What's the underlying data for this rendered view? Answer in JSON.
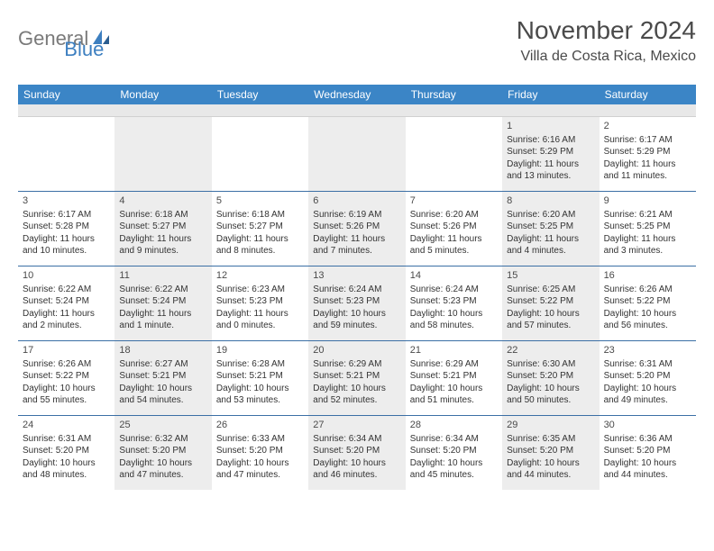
{
  "logo": {
    "text1": "General",
    "text2": "Blue"
  },
  "title": "November 2024",
  "location": "Villa de Costa Rica, Mexico",
  "weekdays": [
    "Sunday",
    "Monday",
    "Tuesday",
    "Wednesday",
    "Thursday",
    "Friday",
    "Saturday"
  ],
  "colors": {
    "header_bg": "#3b85c6",
    "divider": "#3b6fa5",
    "shade": "#ededed",
    "logo_gray": "#7a7a7a",
    "logo_blue": "#3d7fc0"
  },
  "weeks": [
    [
      {
        "num": "",
        "shaded": false,
        "lines": []
      },
      {
        "num": "",
        "shaded": true,
        "lines": []
      },
      {
        "num": "",
        "shaded": false,
        "lines": []
      },
      {
        "num": "",
        "shaded": true,
        "lines": []
      },
      {
        "num": "",
        "shaded": false,
        "lines": []
      },
      {
        "num": "1",
        "shaded": true,
        "lines": [
          "Sunrise: 6:16 AM",
          "Sunset: 5:29 PM",
          "Daylight: 11 hours",
          "and 13 minutes."
        ]
      },
      {
        "num": "2",
        "shaded": false,
        "lines": [
          "Sunrise: 6:17 AM",
          "Sunset: 5:29 PM",
          "Daylight: 11 hours",
          "and 11 minutes."
        ]
      }
    ],
    [
      {
        "num": "3",
        "shaded": false,
        "lines": [
          "Sunrise: 6:17 AM",
          "Sunset: 5:28 PM",
          "Daylight: 11 hours",
          "and 10 minutes."
        ]
      },
      {
        "num": "4",
        "shaded": true,
        "lines": [
          "Sunrise: 6:18 AM",
          "Sunset: 5:27 PM",
          "Daylight: 11 hours",
          "and 9 minutes."
        ]
      },
      {
        "num": "5",
        "shaded": false,
        "lines": [
          "Sunrise: 6:18 AM",
          "Sunset: 5:27 PM",
          "Daylight: 11 hours",
          "and 8 minutes."
        ]
      },
      {
        "num": "6",
        "shaded": true,
        "lines": [
          "Sunrise: 6:19 AM",
          "Sunset: 5:26 PM",
          "Daylight: 11 hours",
          "and 7 minutes."
        ]
      },
      {
        "num": "7",
        "shaded": false,
        "lines": [
          "Sunrise: 6:20 AM",
          "Sunset: 5:26 PM",
          "Daylight: 11 hours",
          "and 5 minutes."
        ]
      },
      {
        "num": "8",
        "shaded": true,
        "lines": [
          "Sunrise: 6:20 AM",
          "Sunset: 5:25 PM",
          "Daylight: 11 hours",
          "and 4 minutes."
        ]
      },
      {
        "num": "9",
        "shaded": false,
        "lines": [
          "Sunrise: 6:21 AM",
          "Sunset: 5:25 PM",
          "Daylight: 11 hours",
          "and 3 minutes."
        ]
      }
    ],
    [
      {
        "num": "10",
        "shaded": false,
        "lines": [
          "Sunrise: 6:22 AM",
          "Sunset: 5:24 PM",
          "Daylight: 11 hours",
          "and 2 minutes."
        ]
      },
      {
        "num": "11",
        "shaded": true,
        "lines": [
          "Sunrise: 6:22 AM",
          "Sunset: 5:24 PM",
          "Daylight: 11 hours",
          "and 1 minute."
        ]
      },
      {
        "num": "12",
        "shaded": false,
        "lines": [
          "Sunrise: 6:23 AM",
          "Sunset: 5:23 PM",
          "Daylight: 11 hours",
          "and 0 minutes."
        ]
      },
      {
        "num": "13",
        "shaded": true,
        "lines": [
          "Sunrise: 6:24 AM",
          "Sunset: 5:23 PM",
          "Daylight: 10 hours",
          "and 59 minutes."
        ]
      },
      {
        "num": "14",
        "shaded": false,
        "lines": [
          "Sunrise: 6:24 AM",
          "Sunset: 5:23 PM",
          "Daylight: 10 hours",
          "and 58 minutes."
        ]
      },
      {
        "num": "15",
        "shaded": true,
        "lines": [
          "Sunrise: 6:25 AM",
          "Sunset: 5:22 PM",
          "Daylight: 10 hours",
          "and 57 minutes."
        ]
      },
      {
        "num": "16",
        "shaded": false,
        "lines": [
          "Sunrise: 6:26 AM",
          "Sunset: 5:22 PM",
          "Daylight: 10 hours",
          "and 56 minutes."
        ]
      }
    ],
    [
      {
        "num": "17",
        "shaded": false,
        "lines": [
          "Sunrise: 6:26 AM",
          "Sunset: 5:22 PM",
          "Daylight: 10 hours",
          "and 55 minutes."
        ]
      },
      {
        "num": "18",
        "shaded": true,
        "lines": [
          "Sunrise: 6:27 AM",
          "Sunset: 5:21 PM",
          "Daylight: 10 hours",
          "and 54 minutes."
        ]
      },
      {
        "num": "19",
        "shaded": false,
        "lines": [
          "Sunrise: 6:28 AM",
          "Sunset: 5:21 PM",
          "Daylight: 10 hours",
          "and 53 minutes."
        ]
      },
      {
        "num": "20",
        "shaded": true,
        "lines": [
          "Sunrise: 6:29 AM",
          "Sunset: 5:21 PM",
          "Daylight: 10 hours",
          "and 52 minutes."
        ]
      },
      {
        "num": "21",
        "shaded": false,
        "lines": [
          "Sunrise: 6:29 AM",
          "Sunset: 5:21 PM",
          "Daylight: 10 hours",
          "and 51 minutes."
        ]
      },
      {
        "num": "22",
        "shaded": true,
        "lines": [
          "Sunrise: 6:30 AM",
          "Sunset: 5:20 PM",
          "Daylight: 10 hours",
          "and 50 minutes."
        ]
      },
      {
        "num": "23",
        "shaded": false,
        "lines": [
          "Sunrise: 6:31 AM",
          "Sunset: 5:20 PM",
          "Daylight: 10 hours",
          "and 49 minutes."
        ]
      }
    ],
    [
      {
        "num": "24",
        "shaded": false,
        "lines": [
          "Sunrise: 6:31 AM",
          "Sunset: 5:20 PM",
          "Daylight: 10 hours",
          "and 48 minutes."
        ]
      },
      {
        "num": "25",
        "shaded": true,
        "lines": [
          "Sunrise: 6:32 AM",
          "Sunset: 5:20 PM",
          "Daylight: 10 hours",
          "and 47 minutes."
        ]
      },
      {
        "num": "26",
        "shaded": false,
        "lines": [
          "Sunrise: 6:33 AM",
          "Sunset: 5:20 PM",
          "Daylight: 10 hours",
          "and 47 minutes."
        ]
      },
      {
        "num": "27",
        "shaded": true,
        "lines": [
          "Sunrise: 6:34 AM",
          "Sunset: 5:20 PM",
          "Daylight: 10 hours",
          "and 46 minutes."
        ]
      },
      {
        "num": "28",
        "shaded": false,
        "lines": [
          "Sunrise: 6:34 AM",
          "Sunset: 5:20 PM",
          "Daylight: 10 hours",
          "and 45 minutes."
        ]
      },
      {
        "num": "29",
        "shaded": true,
        "lines": [
          "Sunrise: 6:35 AM",
          "Sunset: 5:20 PM",
          "Daylight: 10 hours",
          "and 44 minutes."
        ]
      },
      {
        "num": "30",
        "shaded": false,
        "lines": [
          "Sunrise: 6:36 AM",
          "Sunset: 5:20 PM",
          "Daylight: 10 hours",
          "and 44 minutes."
        ]
      }
    ]
  ]
}
